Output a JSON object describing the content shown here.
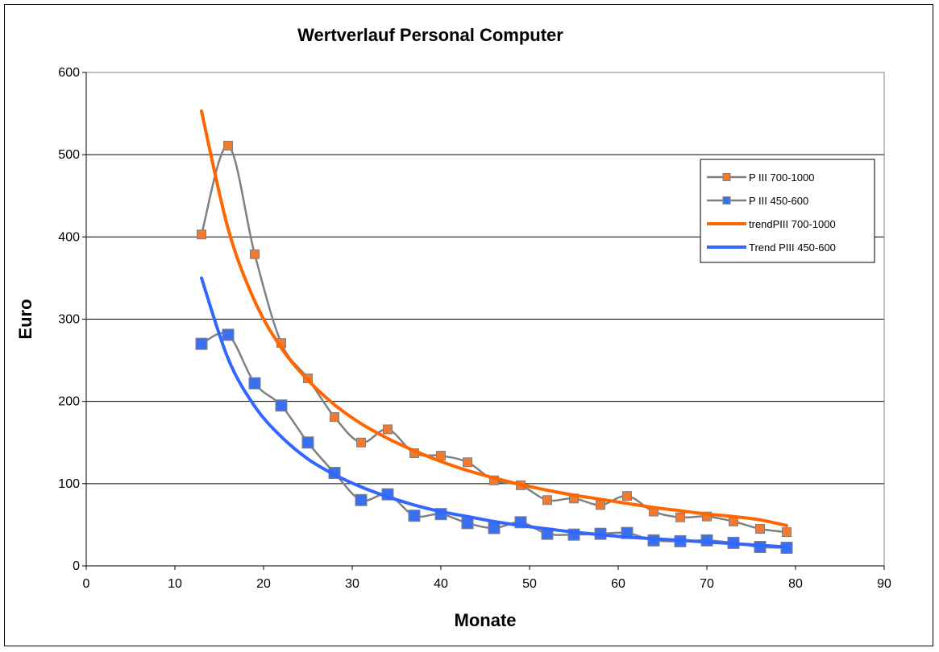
{
  "chart_data": {
    "type": "line",
    "title": "Wertverlauf Personal Computer",
    "xlabel": "Monate",
    "ylabel": "Euro",
    "xlim": [
      0,
      90
    ],
    "ylim": [
      0,
      600
    ],
    "xticks": [
      0,
      10,
      20,
      30,
      40,
      50,
      60,
      70,
      80,
      90
    ],
    "yticks": [
      0,
      100,
      200,
      300,
      400,
      500,
      600
    ],
    "grid": "horizontal",
    "legend_position": "right",
    "colors": {
      "series_line": "#808080",
      "orange": "#ff6600",
      "blue": "#3366ff"
    },
    "series": [
      {
        "name": "P III 700-1000",
        "style": "smooth-line-square-markers",
        "marker_color": "#f07b30",
        "x": [
          13,
          16,
          19,
          22,
          25,
          28,
          31,
          34,
          37,
          40,
          43,
          46,
          49,
          52,
          55,
          58,
          61,
          64,
          67,
          70,
          73,
          76,
          79
        ],
        "y": [
          403,
          511,
          379,
          271,
          228,
          181,
          150,
          166,
          137,
          134,
          126,
          104,
          98,
          80,
          82,
          74,
          85,
          66,
          59,
          60,
          54,
          45,
          41
        ]
      },
      {
        "name": "P III 450-600",
        "style": "smooth-line-square-markers",
        "marker_color": "#3b6ff2",
        "x": [
          13,
          16,
          19,
          22,
          25,
          28,
          31,
          34,
          37,
          40,
          43,
          46,
          49,
          52,
          55,
          58,
          61,
          64,
          67,
          70,
          73,
          76,
          79
        ],
        "y": [
          270,
          281,
          222,
          195,
          150,
          113,
          80,
          87,
          61,
          63,
          52,
          46,
          53,
          39,
          38,
          39,
          40,
          31,
          30,
          31,
          28,
          23,
          22
        ]
      },
      {
        "name": "trendPIII 700-1000",
        "style": "trend",
        "color": "#ff6600",
        "x": [
          13,
          16,
          19,
          22,
          25,
          28,
          31,
          34,
          37,
          40,
          43,
          46,
          49,
          52,
          55,
          58,
          61,
          64,
          67,
          70,
          73,
          76,
          79
        ],
        "y": [
          553,
          410,
          322,
          265,
          226,
          196,
          173,
          155,
          140,
          127,
          116,
          107,
          99,
          92,
          86,
          81,
          76,
          71,
          67,
          63,
          60,
          56,
          49
        ]
      },
      {
        "name": "Trend PIII 450-600",
        "style": "trend",
        "color": "#3366ff",
        "x": [
          13,
          16,
          19,
          22,
          25,
          28,
          31,
          34,
          37,
          40,
          43,
          46,
          49,
          52,
          55,
          58,
          61,
          64,
          67,
          70,
          73,
          76,
          79
        ],
        "y": [
          350,
          252,
          194,
          157,
          130,
          111,
          96,
          84,
          74,
          66,
          60,
          54,
          49,
          45,
          41,
          38,
          35,
          33,
          31,
          29,
          27,
          25,
          23
        ]
      }
    ]
  }
}
